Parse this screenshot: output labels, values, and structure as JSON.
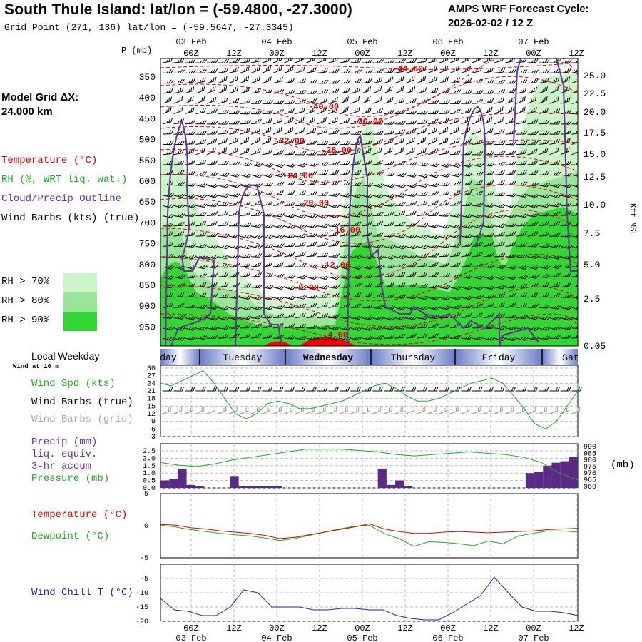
{
  "header": {
    "title": "South Thule Island:  lat/lon = (-59.4800, -27.3000)",
    "grid_point": "Grid Point (271, 136) lat/lon = (-59.5647, -27.3345)",
    "forecast_label": "AMPS WRF Forecast Cycle:",
    "forecast_cycle": "2026-02-02 / 12  Z"
  },
  "time_axis": {
    "top_dates": [
      "03 Feb",
      "04 Feb",
      "05 Feb",
      "06 Feb",
      "07 Feb"
    ],
    "hours": [
      "00Z",
      "12Z",
      "00Z",
      "12Z",
      "00Z",
      "12Z",
      "00Z",
      "12Z",
      "00Z",
      "12Z"
    ],
    "bottom_dates": [
      "03 Feb",
      "04 Feb",
      "05 Feb",
      "06 Feb",
      "07 Feb"
    ]
  },
  "legend": {
    "model_grid_line1": "Model Grid ΔX:",
    "model_grid_line2": " 24.000 km",
    "temperature": "Temperature (°C)",
    "rh": "RH (%, WRT liq. wat.)",
    "cloud": "Cloud/Precip Outline",
    "wind": "Wind Barbs (kts) (true)",
    "rh70": "RH > 70%",
    "rh80": "RH > 80%",
    "rh90": "RH > 90%",
    "colors": {
      "rh70": "#ccf5cc",
      "rh80": "#99e699",
      "rh90": "#33d633",
      "temperature": "#dd0000",
      "cloud": "#663399"
    }
  },
  "weekday_bar": {
    "label": "Local Weekday",
    "days": [
      "day",
      "Tuesday",
      "Wednesday",
      "Thursday",
      "Friday",
      "Sat"
    ]
  },
  "wind_panel": {
    "note": "Wind at 10 m",
    "spd_label": "Wind Spd (kts)",
    "barbs_true": "Wind Barbs (true)",
    "barbs_grid": "Wind Barbs (grid)"
  },
  "precip_panel": {
    "l1": "Precip (mm)",
    "l2": "liq. equiv.",
    "l3": "3-hr accum",
    "l4": "Pressure (mb)",
    "unit": "(mb)"
  },
  "temp_panel": {
    "temp": "Temperature (°C)",
    "dew": "Dewpoint (°C)"
  },
  "chill_panel": {
    "label": "Wind Chill T (°C)"
  },
  "chart_data": [
    {
      "type": "heatmap",
      "description_keys": "cross-section",
      "yaxis_left_label": "P (mb)",
      "pressure_ticks": [
        "350",
        "400",
        "450",
        "500",
        "550",
        "600",
        "650",
        "700",
        "750",
        "800",
        "850",
        "900",
        "950"
      ],
      "height_ticks": [
        "25.0",
        "22.5",
        "20.0",
        "17.5",
        "15.0",
        "12.5",
        "10.0",
        "7.5",
        "5.0",
        "2.5",
        "0.05"
      ],
      "yaxis_right_label": "Kft MSL",
      "isotherm_labels": [
        "-44.00",
        "-40.00",
        "-36.00",
        "-32.00",
        "-28.00",
        "-24.00",
        "-20.00",
        "-16.00",
        "-12.00",
        "-8.00",
        "-4.00"
      ]
    },
    {
      "type": "line",
      "name": "wind_speed",
      "ylim": [
        3,
        30
      ],
      "yticks": [
        "30",
        "27",
        "24",
        "21",
        "18",
        "15",
        "12",
        "9",
        "6",
        "3"
      ],
      "x_hours": [
        0,
        3,
        6,
        9,
        12,
        15,
        18,
        21,
        24,
        27,
        30,
        33,
        36,
        39,
        42,
        45,
        48,
        51,
        54,
        57,
        60,
        63,
        66,
        69,
        72,
        75,
        78,
        81,
        84,
        87,
        90,
        93,
        96,
        99,
        102,
        105,
        108,
        111,
        114,
        117,
        120
      ],
      "values": [
        24,
        23,
        25,
        27,
        29,
        24,
        18,
        12,
        10,
        12,
        16,
        17,
        16,
        14,
        14,
        15,
        16,
        17,
        19,
        21,
        23,
        24,
        22,
        19,
        17,
        17,
        18,
        20,
        22,
        24,
        25,
        26,
        24,
        19,
        14,
        8,
        6,
        9,
        15,
        21,
        24
      ]
    },
    {
      "type": "bar",
      "name": "precip_and_pressure",
      "precip_ylim": [
        0,
        2.5
      ],
      "precip_ticks": [
        "2.5",
        "2.0",
        "1.5",
        "1.0",
        "0.5",
        "0.0"
      ],
      "pressure_ticks": [
        "990",
        "985",
        "980",
        "975",
        "970",
        "965",
        "960"
      ],
      "precip_values": [
        0.5,
        0.6,
        1.3,
        0.2,
        0.1,
        0,
        0,
        0,
        0.8,
        0.1,
        0.1,
        0.1,
        0.1,
        0.1,
        0,
        0,
        0,
        0,
        0,
        0,
        0,
        0,
        0,
        0,
        0,
        1.3,
        0.2,
        0.5,
        0.1,
        0,
        0,
        0,
        0,
        0,
        0,
        0,
        0,
        0,
        0,
        0,
        0,
        0,
        1,
        1.1,
        1.5,
        1.7,
        1.8,
        2.1
      ],
      "pressure_values": [
        978,
        976,
        975,
        977,
        980,
        982,
        984,
        986,
        988,
        988,
        988,
        987,
        986,
        984,
        983,
        984,
        985,
        986,
        985,
        984,
        982,
        978,
        970,
        965
      ]
    },
    {
      "type": "line",
      "name": "temperature_dewpoint",
      "ylim": [
        -5,
        5
      ],
      "yticks": [
        "5",
        "0",
        "-5"
      ],
      "temperature": [
        0.2,
        0.1,
        -0.3,
        -0.5,
        -0.8,
        -1,
        -1.2,
        -1.5,
        -2,
        -1.8,
        -1.4,
        -1,
        -0.6,
        -0.2,
        0.3,
        -0.5,
        -0.9,
        -1.2,
        -1.2,
        -1,
        -0.9,
        -1,
        -1.1,
        -1,
        -0.9,
        -0.8,
        -0.6,
        -0.5,
        -0.4
      ],
      "dewpoint": [
        0.1,
        -0.2,
        -0.6,
        -0.9,
        -1.2,
        -1.4,
        -1.6,
        -1.9,
        -2.3,
        -2,
        -1.5,
        -1,
        -0.5,
        -0.1,
        0.1,
        -1.2,
        -2,
        -3.2,
        -2.5,
        -2.6,
        -2.8,
        -3.1,
        -2.4,
        -2.8,
        -1.6,
        -1.2,
        -0.8,
        -0.8,
        -1
      ]
    },
    {
      "type": "line",
      "name": "wind_chill",
      "ylim": [
        -20,
        0
      ],
      "yticks": [
        "-5",
        "-10",
        "-15",
        "-20"
      ],
      "values": [
        -12,
        -16,
        -16.5,
        -18,
        -18,
        -15,
        -9,
        -10,
        -15,
        -15,
        -15,
        -16,
        -16,
        -15.5,
        -15.5,
        -16,
        -16,
        -18,
        -19,
        -19.5,
        -19.5,
        -17,
        -14,
        -11,
        -4.5,
        -10,
        -15,
        -16.5,
        -16.5,
        -17,
        -18
      ]
    }
  ]
}
